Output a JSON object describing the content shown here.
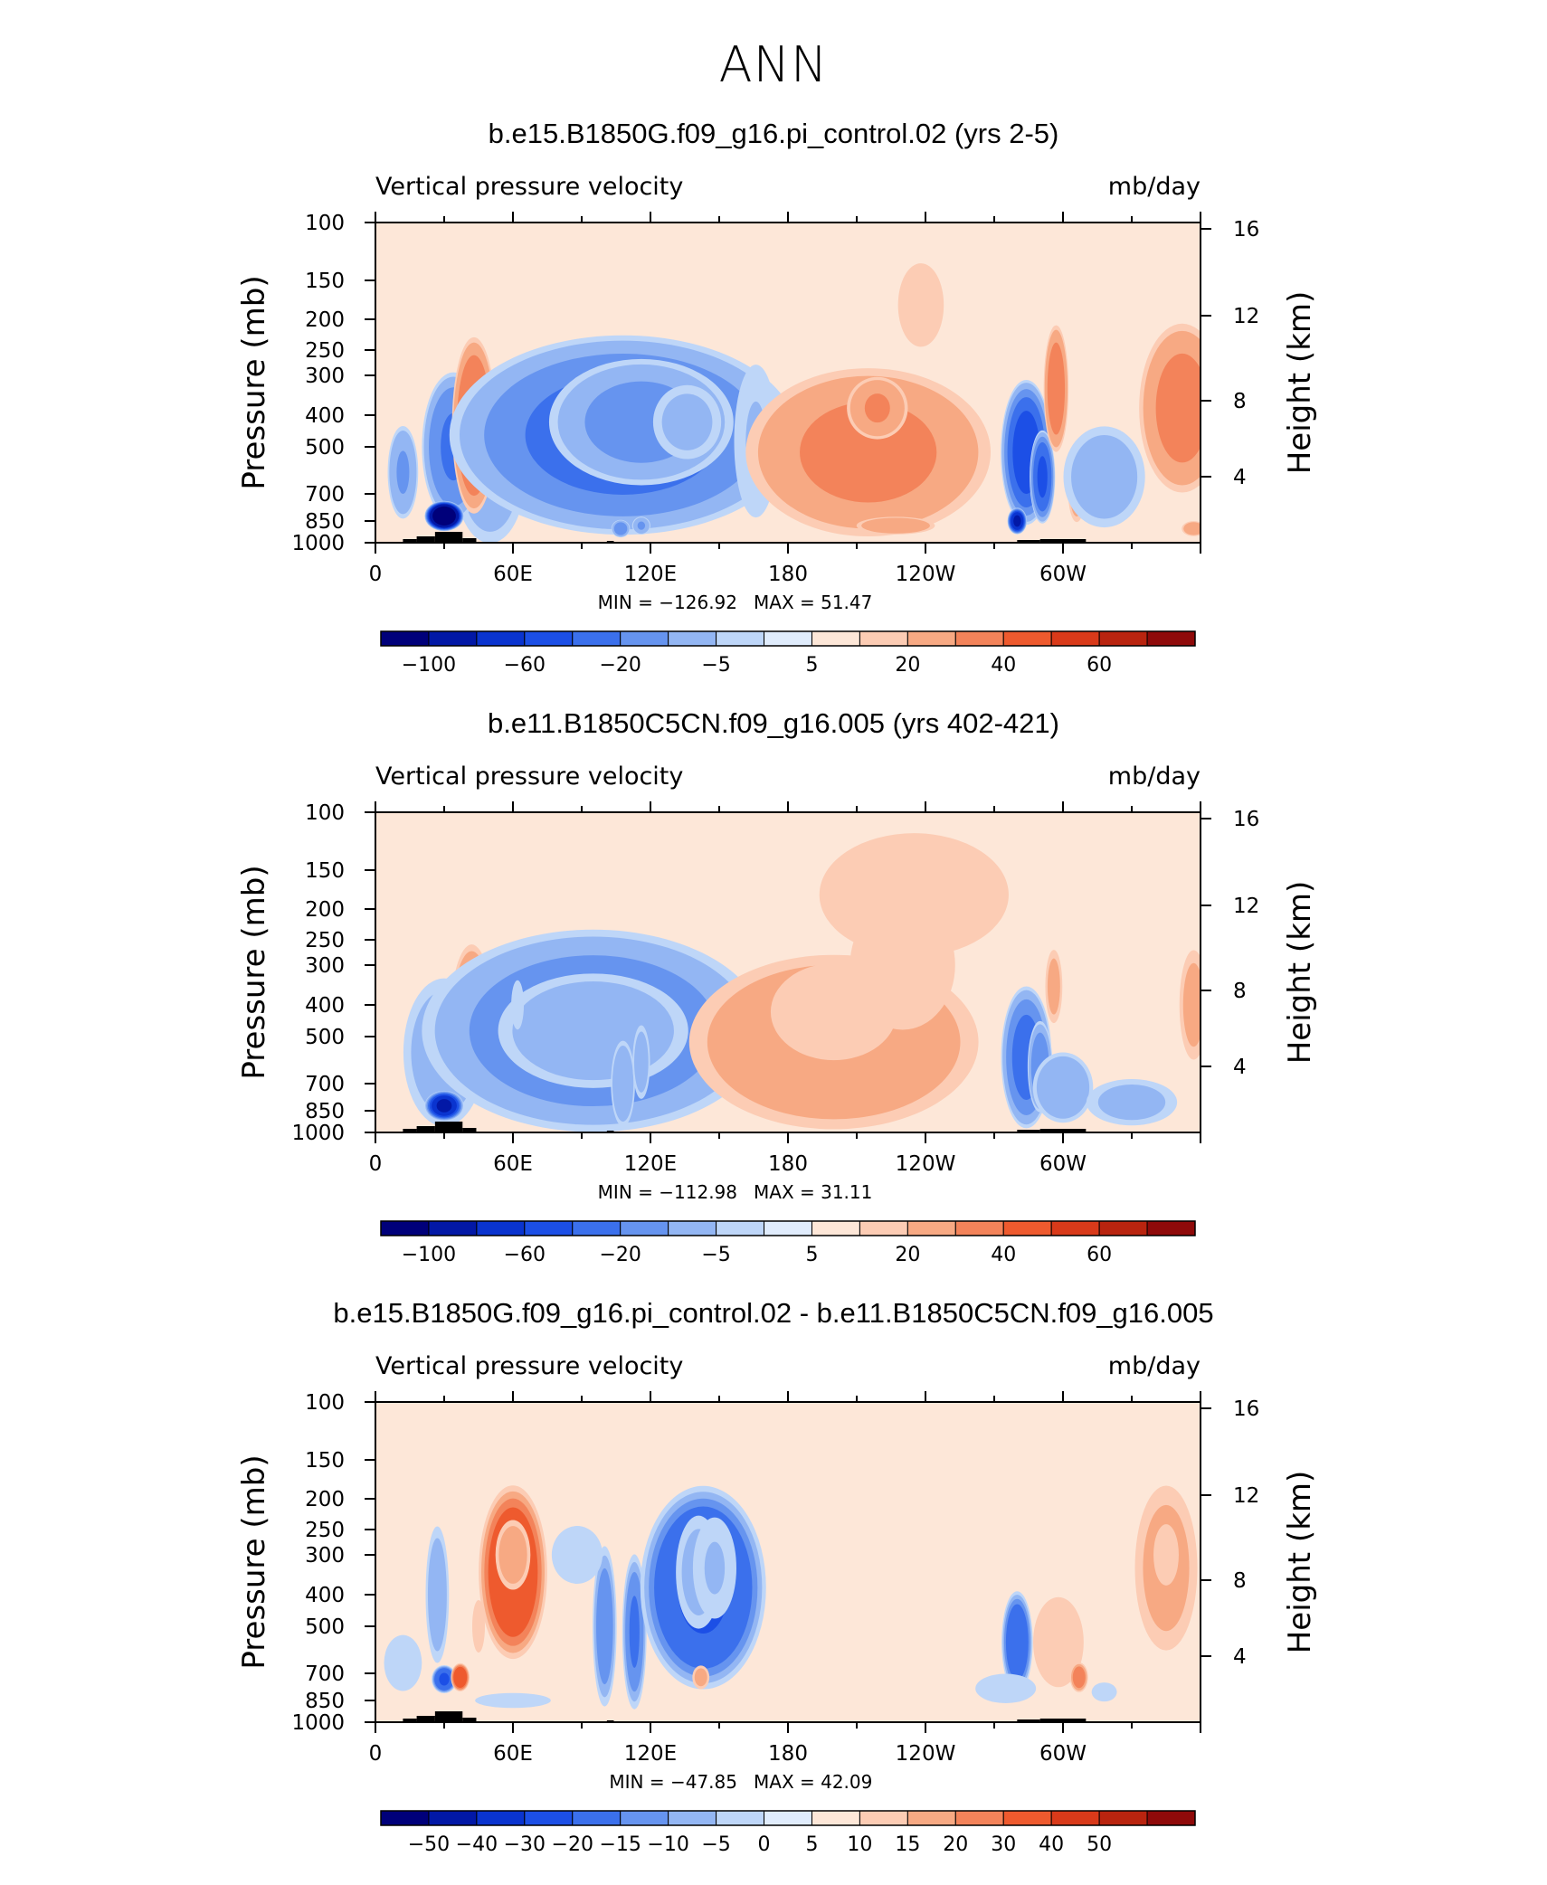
{
  "title": "ANN",
  "chart_data": [
    {
      "type": "heatmap",
      "title": "b.e15.B1850G.f09_g16.pi_control.02 (yrs 2-5)",
      "variable": "Vertical pressure velocity",
      "units": "mb/day",
      "ylabel": "Pressure (mb)",
      "ylabel_right": "Height (km)",
      "x_ticks": [
        "0",
        "60E",
        "120E",
        "180",
        "120W",
        "60W"
      ],
      "pressure_ticks": [
        "100",
        "150",
        "200",
        "250",
        "300",
        "400",
        "500",
        "700",
        "850",
        "1000"
      ],
      "height_ticks": [
        "16",
        "12",
        "8",
        "4"
      ],
      "min_label": "MIN = −126.92",
      "max_label": "MAX =  51.47",
      "min": -126.92,
      "max": 51.47,
      "colorbar_labels": [
        "−100",
        "−60",
        "−20",
        "−5",
        "5",
        "20",
        "40",
        "60"
      ],
      "colors": [
        "#00007a",
        "#0218a6",
        "#0a34cf",
        "#1c4fe6",
        "#3b70ec",
        "#6694ef",
        "#93b6f3",
        "#bed6f8",
        "#e0ecfc",
        "#fde7d8",
        "#fcccb4",
        "#f7a983",
        "#f3835a",
        "#ee5a2e",
        "#d93a1a",
        "#b9240f",
        "#8f0a0a"
      ],
      "xlim": [
        0,
        360
      ],
      "plim": [
        1000,
        100
      ],
      "blobs": [
        {
          "x": 50,
          "p": 620,
          "sx": 12,
          "sp": 450,
          "a": -14,
          "rot": 0
        },
        {
          "x": 34,
          "p": 500,
          "sx": 10,
          "sp": 380,
          "a": -30,
          "rot": 0
        },
        {
          "x": 30,
          "p": 820,
          "sx": 6,
          "sp": 130,
          "a": -90,
          "rot": 0
        },
        {
          "x": 12,
          "p": 600,
          "sx": 5,
          "sp": 300,
          "a": -20,
          "rot": 0
        },
        {
          "x": 43,
          "p": 430,
          "sx": 7,
          "sp": 380,
          "a": 30,
          "rot": 0
        },
        {
          "x": 108,
          "p": 460,
          "sx": 55,
          "sp": 450,
          "a": -32,
          "rot": 0
        },
        {
          "x": 116,
          "p": 420,
          "sx": 30,
          "sp": 280,
          "a": -22,
          "rot": 0
        },
        {
          "x": 136,
          "p": 420,
          "sx": 12,
          "sp": 180,
          "a": -12,
          "rot": 0
        },
        {
          "x": 107,
          "p": 900,
          "sx": 3,
          "sp": 90,
          "a": -25,
          "rot": 0
        },
        {
          "x": 116,
          "p": 880,
          "sx": 3,
          "sp": 90,
          "a": -20,
          "rot": 0
        },
        {
          "x": 238,
          "p": 180,
          "sx": 18,
          "sp": 180,
          "a": 5,
          "rot": 0
        },
        {
          "x": 166,
          "p": 480,
          "sx": 8,
          "sp": 420,
          "a": -10,
          "rot": 0
        },
        {
          "x": 215,
          "p": 520,
          "sx": 40,
          "sp": 450,
          "a": 21,
          "rot": 0
        },
        {
          "x": 219,
          "p": 380,
          "sx": 10,
          "sp": 130,
          "a": 20,
          "rot": 0
        },
        {
          "x": 227,
          "p": 880,
          "sx": 13,
          "sp": 90,
          "a": 18,
          "rot": 0
        },
        {
          "x": 284,
          "p": 520,
          "sx": 8,
          "sp": 380,
          "a": -42,
          "rot": 0
        },
        {
          "x": 291,
          "p": 620,
          "sx": 4,
          "sp": 300,
          "a": -40,
          "rot": 0
        },
        {
          "x": 280,
          "p": 850,
          "sx": 3,
          "sp": 120,
          "a": -60,
          "rot": 0
        },
        {
          "x": 297,
          "p": 330,
          "sx": 4,
          "sp": 220,
          "a": 25,
          "rot": 0
        },
        {
          "x": 306,
          "p": 680,
          "sx": 3,
          "sp": 250,
          "a": 14,
          "rot": 0
        },
        {
          "x": 318,
          "p": 620,
          "sx": 14,
          "sp": 350,
          "a": -14,
          "rot": 0
        },
        {
          "x": 352,
          "p": 380,
          "sx": 14,
          "sp": 330,
          "a": 22,
          "rot": 0
        },
        {
          "x": 357,
          "p": 900,
          "sx": 4,
          "sp": 80,
          "a": 16,
          "rot": 0
        },
        {
          "x": 294,
          "p": 300,
          "sx": 30,
          "sp": 200,
          "a": 4,
          "rot": 0
        }
      ],
      "bg": 0.5,
      "topo": [
        [
          12,
          18,
          4
        ],
        [
          18,
          26,
          7
        ],
        [
          26,
          38,
          12
        ],
        [
          38,
          44,
          5
        ],
        [
          280,
          290,
          3
        ],
        [
          290,
          310,
          4
        ],
        [
          101,
          104,
          2
        ]
      ]
    },
    {
      "type": "heatmap",
      "title": "b.e11.B1850C5CN.f09_g16.005 (yrs 402-421)",
      "variable": "Vertical pressure velocity",
      "units": "mb/day",
      "ylabel": "Pressure (mb)",
      "ylabel_right": "Height (km)",
      "x_ticks": [
        "0",
        "60E",
        "120E",
        "180",
        "120W",
        "60W"
      ],
      "pressure_ticks": [
        "100",
        "150",
        "200",
        "250",
        "300",
        "400",
        "500",
        "700",
        "850",
        "1000"
      ],
      "height_ticks": [
        "16",
        "12",
        "8",
        "4"
      ],
      "min_label": "MIN = −112.98",
      "max_label": "MAX =  31.11",
      "min": -112.98,
      "max": 31.11,
      "colorbar_labels": [
        "−100",
        "−60",
        "−20",
        "−5",
        "5",
        "20",
        "40",
        "60"
      ],
      "colors": [
        "#00007a",
        "#0218a6",
        "#0a34cf",
        "#1c4fe6",
        "#3b70ec",
        "#6694ef",
        "#93b6f3",
        "#bed6f8",
        "#e0ecfc",
        "#fde7d8",
        "#fcccb4",
        "#f7a983",
        "#f3835a",
        "#ee5a2e",
        "#d93a1a",
        "#b9240f",
        "#8f0a0a"
      ],
      "xlim": [
        0,
        360
      ],
      "plim": [
        1000,
        100
      ],
      "blobs": [
        {
          "x": 30,
          "p": 560,
          "sx": 14,
          "sp": 450,
          "a": -14,
          "rot": 0
        },
        {
          "x": 30,
          "p": 820,
          "sx": 6,
          "sp": 130,
          "a": -60,
          "rot": 0
        },
        {
          "x": 42,
          "p": 450,
          "sx": 7,
          "sp": 360,
          "a": 22,
          "rot": 0
        },
        {
          "x": 95,
          "p": 480,
          "sx": 55,
          "sp": 480,
          "a": -26,
          "rot": 0
        },
        {
          "x": 95,
          "p": 480,
          "sx": 32,
          "sp": 300,
          "a": -16,
          "rot": 0
        },
        {
          "x": 108,
          "p": 700,
          "sx": 4,
          "sp": 330,
          "a": -18,
          "rot": 0
        },
        {
          "x": 116,
          "p": 600,
          "sx": 3,
          "sp": 250,
          "a": -14,
          "rot": 0
        },
        {
          "x": 62,
          "p": 400,
          "sx": 3,
          "sp": 150,
          "a": -6,
          "rot": 0
        },
        {
          "x": 200,
          "p": 520,
          "sx": 48,
          "sp": 470,
          "a": 18,
          "rot": 0
        },
        {
          "x": 200,
          "p": 420,
          "sx": 30,
          "sp": 300,
          "a": 6,
          "rot": 0
        },
        {
          "x": 230,
          "p": 300,
          "sx": 25,
          "sp": 280,
          "a": 6,
          "rot": 0
        },
        {
          "x": 278,
          "p": 160,
          "sx": 25,
          "sp": 100,
          "a": 4,
          "rot": 0
        },
        {
          "x": 235,
          "p": 180,
          "sx": 45,
          "sp": 160,
          "a": 6,
          "rot": 0
        },
        {
          "x": 284,
          "p": 580,
          "sx": 8,
          "sp": 420,
          "a": -32,
          "rot": 0
        },
        {
          "x": 290,
          "p": 620,
          "sx": 4,
          "sp": 300,
          "a": -26,
          "rot": 0
        },
        {
          "x": 300,
          "p": 720,
          "sx": 10,
          "sp": 280,
          "a": -18,
          "rot": 0
        },
        {
          "x": 330,
          "p": 800,
          "sx": 16,
          "sp": 220,
          "a": -12,
          "rot": 0
        },
        {
          "x": 296,
          "p": 350,
          "sx": 3,
          "sp": 150,
          "a": 12,
          "rot": 0
        },
        {
          "x": 357,
          "p": 400,
          "sx": 5,
          "sp": 250,
          "a": 12,
          "rot": 0
        },
        {
          "x": 25,
          "p": 180,
          "sx": 30,
          "sp": 180,
          "a": 4,
          "rot": 0
        }
      ],
      "bg": 1.0,
      "topo": [
        [
          12,
          18,
          4
        ],
        [
          18,
          26,
          7
        ],
        [
          26,
          38,
          12
        ],
        [
          38,
          44,
          5
        ],
        [
          280,
          290,
          3
        ],
        [
          290,
          310,
          4
        ],
        [
          101,
          104,
          2
        ]
      ]
    },
    {
      "type": "heatmap",
      "title": "b.e15.B1850G.f09_g16.pi_control.02 - b.e11.B1850C5CN.f09_g16.005",
      "variable": "Vertical pressure velocity",
      "units": "mb/day",
      "ylabel": "Pressure (mb)",
      "ylabel_right": "Height (km)",
      "x_ticks": [
        "0",
        "60E",
        "120E",
        "180",
        "120W",
        "60W"
      ],
      "pressure_ticks": [
        "100",
        "150",
        "200",
        "250",
        "300",
        "400",
        "500",
        "700",
        "850",
        "1000"
      ],
      "height_ticks": [
        "16",
        "12",
        "8",
        "4"
      ],
      "min_label": "MIN =  −47.85",
      "max_label": "MAX =  42.09",
      "min": -47.85,
      "max": 42.09,
      "colorbar_labels": [
        "−50",
        "−40",
        "−30",
        "−20",
        "−15",
        "−10",
        "−5",
        "0",
        "5",
        "10",
        "15",
        "20",
        "30",
        "40",
        "50"
      ],
      "colors": [
        "#00007a",
        "#0218a6",
        "#0a34cf",
        "#1c4fe6",
        "#3b70ec",
        "#6694ef",
        "#93b6f3",
        "#bed6f8",
        "#e0ecfc",
        "#fde7d8",
        "#fcccb4",
        "#f7a983",
        "#f3835a",
        "#ee5a2e",
        "#d93a1a",
        "#b9240f",
        "#8f0a0a"
      ],
      "xlim": [
        0,
        360
      ],
      "plim": [
        1000,
        100
      ],
      "blobs": [
        {
          "x": 60,
          "p": 340,
          "sx": 11,
          "sp": 300,
          "a": 26,
          "rot": 0
        },
        {
          "x": 60,
          "p": 300,
          "sx": 6,
          "sp": 120,
          "a": 14,
          "rot": 0
        },
        {
          "x": 27,
          "p": 400,
          "sx": 4,
          "sp": 300,
          "a": -14,
          "rot": 0
        },
        {
          "x": 30,
          "p": 730,
          "sx": 4,
          "sp": 110,
          "a": -30,
          "rot": 0
        },
        {
          "x": 37,
          "p": 720,
          "sx": 3,
          "sp": 110,
          "a": 26,
          "rot": 0
        },
        {
          "x": 12,
          "p": 650,
          "sx": 8,
          "sp": 250,
          "a": -7,
          "rot": 0
        },
        {
          "x": 45,
          "p": 500,
          "sx": 5,
          "sp": 300,
          "a": 5,
          "rot": 0
        },
        {
          "x": 100,
          "p": 500,
          "sx": 4,
          "sp": 420,
          "a": -18,
          "rot": 0
        },
        {
          "x": 113,
          "p": 520,
          "sx": 4,
          "sp": 420,
          "a": -20,
          "rot": 0
        },
        {
          "x": 143,
          "p": 380,
          "sx": 20,
          "sp": 380,
          "a": -30,
          "rot": 0
        },
        {
          "x": 141,
          "p": 340,
          "sx": 8,
          "sp": 220,
          "a": -12,
          "rot": 0
        },
        {
          "x": 148,
          "p": 330,
          "sx": 8,
          "sp": 200,
          "a": -10,
          "rot": 0
        },
        {
          "x": 142,
          "p": 720,
          "sx": 3,
          "sp": 100,
          "a": 12,
          "rot": 0
        },
        {
          "x": 200,
          "p": 500,
          "sx": 40,
          "sp": 500,
          "a": 4,
          "rot": 0
        },
        {
          "x": 88,
          "p": 300,
          "sx": 20,
          "sp": 200,
          "a": -5,
          "rot": 0
        },
        {
          "x": 280,
          "p": 560,
          "sx": 5,
          "sp": 300,
          "a": -26,
          "rot": 0
        },
        {
          "x": 275,
          "p": 780,
          "sx": 12,
          "sp": 150,
          "a": -8,
          "rot": 0
        },
        {
          "x": 298,
          "p": 560,
          "sx": 10,
          "sp": 320,
          "a": 8,
          "rot": 0
        },
        {
          "x": 307,
          "p": 720,
          "sx": 3,
          "sp": 120,
          "a": 18,
          "rot": 0
        },
        {
          "x": 318,
          "p": 800,
          "sx": 5,
          "sp": 100,
          "a": -8,
          "rot": 0
        },
        {
          "x": 345,
          "p": 330,
          "sx": 11,
          "sp": 300,
          "a": 12,
          "rot": 0
        },
        {
          "x": 345,
          "p": 300,
          "sx": 5,
          "sp": 120,
          "a": 8,
          "rot": 0
        },
        {
          "x": 300,
          "p": 450,
          "sx": 30,
          "sp": 450,
          "a": 4,
          "rot": 0
        },
        {
          "x": 60,
          "p": 850,
          "sx": 18,
          "sp": 100,
          "a": -6,
          "rot": 0
        }
      ],
      "bg": 0.0,
      "topo": [
        [
          12,
          18,
          4
        ],
        [
          18,
          26,
          7
        ],
        [
          26,
          38,
          12
        ],
        [
          38,
          44,
          5
        ],
        [
          280,
          290,
          3
        ],
        [
          290,
          310,
          4
        ],
        [
          101,
          104,
          2
        ]
      ]
    }
  ]
}
